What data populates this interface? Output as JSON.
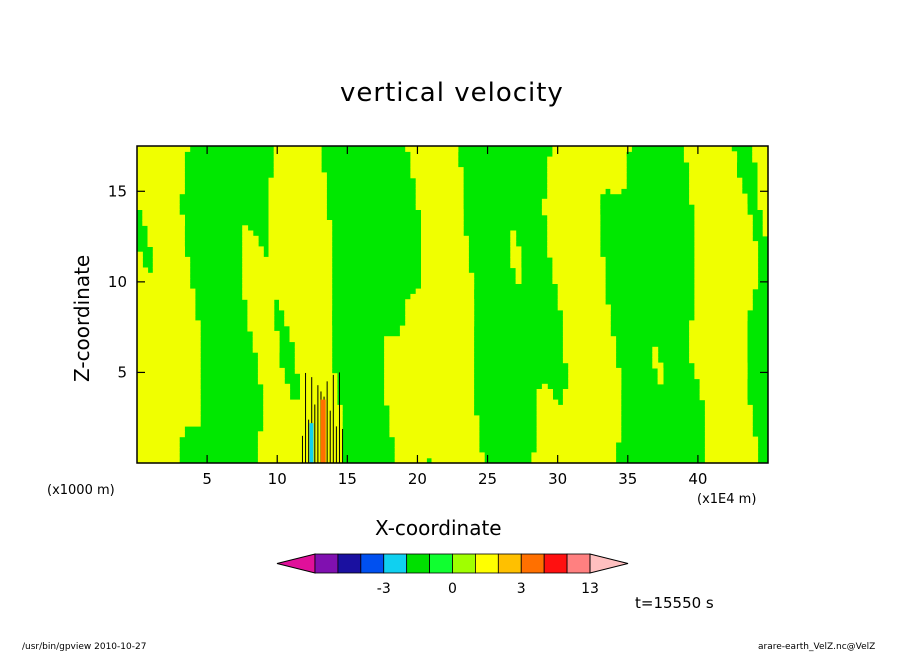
{
  "chart_data": {
    "type": "heatmap",
    "title": "vertical velocity",
    "xlabel": "X-coordinate",
    "ylabel": "Z-coordinate",
    "x_unit_left": "(x1000 m)",
    "x_unit_right": "(x1E4 m)",
    "xlim": [
      0,
      45
    ],
    "ylim": [
      0,
      17.5
    ],
    "x_ticks": [
      5,
      10,
      15,
      20,
      25,
      30,
      35,
      40
    ],
    "y_ticks": [
      5,
      10,
      15
    ],
    "field_summary": "alternating positive (yellow) and negative (green) vertical-velocity bands; strong convective core near x=12-15, z=0-5",
    "colorbar": {
      "levels": [
        -9,
        -7,
        -5,
        -3,
        -2,
        -1,
        0,
        1,
        2,
        3,
        5,
        9,
        13
      ],
      "tick_labels": [
        "-3",
        "0",
        "3",
        "13"
      ],
      "tick_values": [
        -3,
        0,
        3,
        13
      ],
      "colors": [
        "#e0109a",
        "#8010b0",
        "#1a10a0",
        "#0050f0",
        "#10d0f0",
        "#00e000",
        "#10ff30",
        "#a0ff00",
        "#ffff00",
        "#ffc000",
        "#ff7000",
        "#ff1010",
        "#ff8080",
        "#ffc0c0"
      ]
    },
    "colors": {
      "positive": "#f0ff00",
      "negative": "#00e800",
      "strong_up": "#ff7000",
      "strong_down": "#10d0f0"
    }
  },
  "annotations": {
    "time": "t=15550 s",
    "footer_left": "/usr/bin/gpview  2010-10-27",
    "footer_right": "arare-earth_VelZ.nc@VelZ"
  }
}
